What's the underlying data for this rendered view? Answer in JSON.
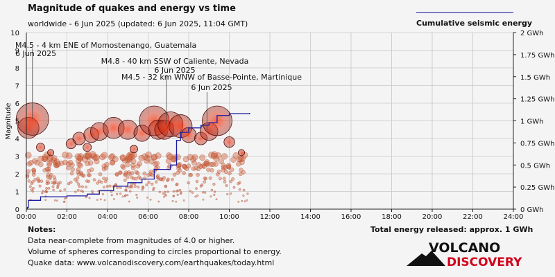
{
  "header": {
    "title": "Magnitude of quakes and energy vs time",
    "subtitle": "worldwide -  6 Jun 2025 (updated: 6 Jun 2025, 11:04 GMT)",
    "legend_label": "Cumulative seismic energy"
  },
  "chart_data": {
    "type": "scatter",
    "title": "Magnitude of quakes and energy vs time",
    "xlabel": "",
    "ylabel": "Magnitude",
    "y2label": "Cumulative seismic energy",
    "x_ticks": [
      "00:00",
      "02:00",
      "04:00",
      "06:00",
      "08:00",
      "10:00",
      "12:00",
      "14:00",
      "16:00",
      "18:00",
      "20:00",
      "22:00",
      "24:00"
    ],
    "xlim_hours": [
      0,
      24
    ],
    "ylim": [
      0,
      10
    ],
    "y_ticks": [
      "0",
      "1",
      "2",
      "3",
      "4",
      "5",
      "6",
      "7",
      "8",
      "9",
      "10"
    ],
    "y2lim_gwh": [
      0,
      2
    ],
    "y2_ticks": [
      "0 GWh",
      "0.25 GWh",
      "0.5 GWh",
      "0.75 GWh",
      "1 GWh",
      "1.25 GWh",
      "1.5 GWh",
      "1.75 GWh",
      "2 GWh"
    ],
    "grid": true,
    "large_quakes": [
      {
        "t": 0.1,
        "mag": 4.6
      },
      {
        "t": 0.3,
        "mag": 5.1
      },
      {
        "t": 0.7,
        "mag": 3.5
      },
      {
        "t": 1.2,
        "mag": 3.2
      },
      {
        "t": 2.2,
        "mag": 3.7
      },
      {
        "t": 2.6,
        "mag": 4.0
      },
      {
        "t": 3.0,
        "mag": 3.5
      },
      {
        "t": 3.2,
        "mag": 4.2
      },
      {
        "t": 3.6,
        "mag": 4.4
      },
      {
        "t": 4.3,
        "mag": 4.6
      },
      {
        "t": 5.0,
        "mag": 4.5
      },
      {
        "t": 5.3,
        "mag": 3.4
      },
      {
        "t": 5.7,
        "mag": 4.3
      },
      {
        "t": 6.3,
        "mag": 5.0
      },
      {
        "t": 6.5,
        "mag": 4.5
      },
      {
        "t": 6.8,
        "mag": 4.5
      },
      {
        "t": 7.1,
        "mag": 4.8
      },
      {
        "t": 7.6,
        "mag": 4.7
      },
      {
        "t": 8.0,
        "mag": 4.2
      },
      {
        "t": 8.6,
        "mag": 4.0
      },
      {
        "t": 9.0,
        "mag": 4.4
      },
      {
        "t": 9.4,
        "mag": 5.0
      },
      {
        "t": 10.0,
        "mag": 3.8
      },
      {
        "t": 10.6,
        "mag": 3.2
      }
    ],
    "small_quakes_note": "Numerous events of magnitude ~0.5 to 3 between 00:00 and 11:00",
    "cumulative_energy_gwh": [
      {
        "t": 0.05,
        "e": 0.02
      },
      {
        "t": 0.1,
        "e": 0.1
      },
      {
        "t": 0.7,
        "e": 0.14
      },
      {
        "t": 2.0,
        "e": 0.15
      },
      {
        "t": 3.0,
        "e": 0.17
      },
      {
        "t": 3.6,
        "e": 0.21
      },
      {
        "t": 4.3,
        "e": 0.26
      },
      {
        "t": 5.0,
        "e": 0.3
      },
      {
        "t": 5.7,
        "e": 0.34
      },
      {
        "t": 6.3,
        "e": 0.45
      },
      {
        "t": 7.1,
        "e": 0.5
      },
      {
        "t": 7.4,
        "e": 0.78
      },
      {
        "t": 7.6,
        "e": 0.87
      },
      {
        "t": 8.0,
        "e": 0.92
      },
      {
        "t": 8.6,
        "e": 0.95
      },
      {
        "t": 9.0,
        "e": 0.98
      },
      {
        "t": 9.4,
        "e": 1.06
      },
      {
        "t": 10.0,
        "e": 1.08
      },
      {
        "t": 11.0,
        "e": 1.09
      }
    ],
    "annotations": [
      {
        "line1": "M4.5 - 4 km ENE of Momostenango, Guatemala",
        "line2": "6 Jun 2025"
      },
      {
        "line1": "M4.8 - 40 km SSW of Caliente, Nevada",
        "line2": "6 Jun 2025"
      },
      {
        "line1": "M4.5 - 32 km WNW of Basse-Pointe, Martinique",
        "line2": "6 Jun 2025"
      }
    ]
  },
  "notes": {
    "title": "Notes:",
    "line1": "Data near-complete from magnitudes of 4.0 or higher.",
    "line2": "Volume of spheres corresponding to circles proportional to energy.",
    "line3": "Quake data: www.volcanodiscovery.com/earthquakes/today.html"
  },
  "total_energy": "Total energy released: approx. 1 GWh",
  "logo": {
    "line1": "VOLCANO",
    "line2": "DISCOVERY"
  },
  "colors": {
    "energy_line": "#1a1aa0",
    "quake_fill": "#c0392b",
    "logo_red": "#d0021b"
  }
}
